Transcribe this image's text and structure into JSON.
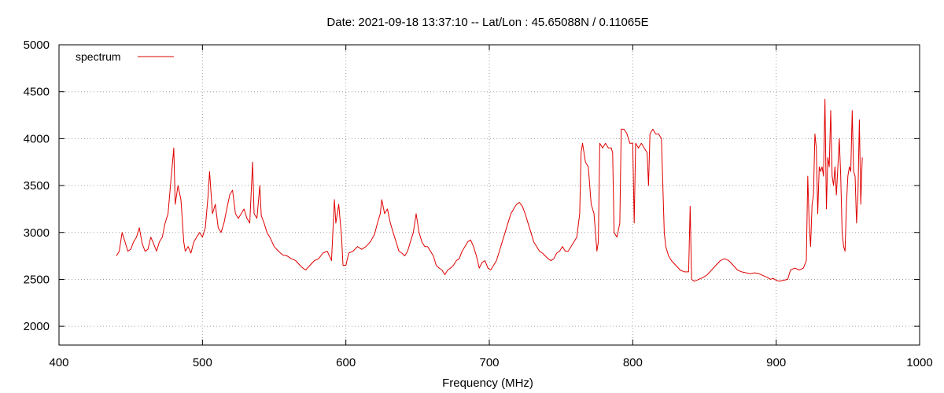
{
  "chart_data": {
    "type": "line",
    "title": "Date: 2021-09-18 13:37:10  --  Lat/Lon : 45.65088N / 0.11065E",
    "xlabel": "Frequency (MHz)",
    "ylabel": "",
    "xlim": [
      400,
      1000
    ],
    "ylim": [
      1800,
      5000
    ],
    "xticks": [
      400,
      500,
      600,
      700,
      800,
      900,
      1000
    ],
    "yticks": [
      2000,
      2500,
      3000,
      3500,
      4000,
      4500,
      5000
    ],
    "grid": true,
    "legend_position": "top-left",
    "series": [
      {
        "name": "spectrum",
        "color": "#e00000",
        "points": [
          [
            440,
            2750
          ],
          [
            442,
            2800
          ],
          [
            444,
            3000
          ],
          [
            446,
            2900
          ],
          [
            448,
            2800
          ],
          [
            450,
            2820
          ],
          [
            452,
            2900
          ],
          [
            454,
            2950
          ],
          [
            456,
            3050
          ],
          [
            458,
            2880
          ],
          [
            460,
            2800
          ],
          [
            462,
            2820
          ],
          [
            464,
            2950
          ],
          [
            466,
            2880
          ],
          [
            468,
            2800
          ],
          [
            470,
            2900
          ],
          [
            472,
            2950
          ],
          [
            474,
            3100
          ],
          [
            476,
            3200
          ],
          [
            478,
            3550
          ],
          [
            480,
            3900
          ],
          [
            481,
            3300
          ],
          [
            483,
            3500
          ],
          [
            485,
            3350
          ],
          [
            487,
            2900
          ],
          [
            488,
            2800
          ],
          [
            490,
            2850
          ],
          [
            492,
            2780
          ],
          [
            494,
            2900
          ],
          [
            496,
            2950
          ],
          [
            498,
            3000
          ],
          [
            500,
            2950
          ],
          [
            502,
            3050
          ],
          [
            504,
            3400
          ],
          [
            505,
            3650
          ],
          [
            507,
            3200
          ],
          [
            509,
            3300
          ],
          [
            511,
            3050
          ],
          [
            513,
            3000
          ],
          [
            515,
            3100
          ],
          [
            517,
            3250
          ],
          [
            519,
            3400
          ],
          [
            521,
            3450
          ],
          [
            523,
            3200
          ],
          [
            525,
            3150
          ],
          [
            527,
            3200
          ],
          [
            529,
            3250
          ],
          [
            531,
            3150
          ],
          [
            533,
            3100
          ],
          [
            535,
            3750
          ],
          [
            536,
            3200
          ],
          [
            538,
            3150
          ],
          [
            540,
            3500
          ],
          [
            541,
            3180
          ],
          [
            543,
            3100
          ],
          [
            545,
            3000
          ],
          [
            547,
            2950
          ],
          [
            550,
            2850
          ],
          [
            553,
            2800
          ],
          [
            556,
            2760
          ],
          [
            559,
            2750
          ],
          [
            562,
            2720
          ],
          [
            565,
            2700
          ],
          [
            568,
            2650
          ],
          [
            570,
            2620
          ],
          [
            572,
            2600
          ],
          [
            575,
            2650
          ],
          [
            578,
            2700
          ],
          [
            581,
            2720
          ],
          [
            584,
            2780
          ],
          [
            587,
            2800
          ],
          [
            590,
            2700
          ],
          [
            592,
            3350
          ],
          [
            593,
            3100
          ],
          [
            595,
            3300
          ],
          [
            597,
            2950
          ],
          [
            598,
            2650
          ],
          [
            600,
            2650
          ],
          [
            602,
            2780
          ],
          [
            605,
            2800
          ],
          [
            608,
            2850
          ],
          [
            611,
            2820
          ],
          [
            614,
            2850
          ],
          [
            617,
            2900
          ],
          [
            620,
            2980
          ],
          [
            622,
            3100
          ],
          [
            624,
            3200
          ],
          [
            625,
            3350
          ],
          [
            627,
            3200
          ],
          [
            629,
            3250
          ],
          [
            631,
            3100
          ],
          [
            633,
            3000
          ],
          [
            635,
            2900
          ],
          [
            637,
            2800
          ],
          [
            639,
            2780
          ],
          [
            641,
            2750
          ],
          [
            643,
            2800
          ],
          [
            645,
            2900
          ],
          [
            647,
            3000
          ],
          [
            649,
            3200
          ],
          [
            651,
            3000
          ],
          [
            653,
            2900
          ],
          [
            655,
            2850
          ],
          [
            657,
            2850
          ],
          [
            659,
            2800
          ],
          [
            661,
            2750
          ],
          [
            663,
            2650
          ],
          [
            665,
            2620
          ],
          [
            667,
            2600
          ],
          [
            669,
            2550
          ],
          [
            671,
            2600
          ],
          [
            673,
            2620
          ],
          [
            675,
            2650
          ],
          [
            677,
            2700
          ],
          [
            679,
            2720
          ],
          [
            681,
            2800
          ],
          [
            683,
            2850
          ],
          [
            685,
            2900
          ],
          [
            687,
            2920
          ],
          [
            689,
            2850
          ],
          [
            691,
            2750
          ],
          [
            693,
            2620
          ],
          [
            695,
            2680
          ],
          [
            697,
            2700
          ],
          [
            699,
            2620
          ],
          [
            701,
            2600
          ],
          [
            703,
            2650
          ],
          [
            705,
            2700
          ],
          [
            707,
            2800
          ],
          [
            709,
            2900
          ],
          [
            711,
            3000
          ],
          [
            713,
            3100
          ],
          [
            715,
            3200
          ],
          [
            717,
            3250
          ],
          [
            719,
            3300
          ],
          [
            721,
            3320
          ],
          [
            723,
            3280
          ],
          [
            725,
            3200
          ],
          [
            727,
            3100
          ],
          [
            729,
            3000
          ],
          [
            731,
            2900
          ],
          [
            733,
            2850
          ],
          [
            735,
            2800
          ],
          [
            737,
            2780
          ],
          [
            739,
            2750
          ],
          [
            741,
            2720
          ],
          [
            743,
            2700
          ],
          [
            745,
            2720
          ],
          [
            747,
            2780
          ],
          [
            749,
            2800
          ],
          [
            751,
            2850
          ],
          [
            753,
            2800
          ],
          [
            755,
            2800
          ],
          [
            757,
            2850
          ],
          [
            759,
            2900
          ],
          [
            761,
            2950
          ],
          [
            763,
            3200
          ],
          [
            764,
            3850
          ],
          [
            765,
            3950
          ],
          [
            767,
            3750
          ],
          [
            769,
            3700
          ],
          [
            771,
            3300
          ],
          [
            773,
            3200
          ],
          [
            775,
            2800
          ],
          [
            776,
            2900
          ],
          [
            777,
            3950
          ],
          [
            779,
            3900
          ],
          [
            781,
            3950
          ],
          [
            783,
            3900
          ],
          [
            785,
            3900
          ],
          [
            786,
            3850
          ],
          [
            787,
            3000
          ],
          [
            789,
            2950
          ],
          [
            791,
            3100
          ],
          [
            792,
            4100
          ],
          [
            794,
            4100
          ],
          [
            796,
            4050
          ],
          [
            798,
            3950
          ],
          [
            800,
            3950
          ],
          [
            801,
            3100
          ],
          [
            802,
            3950
          ],
          [
            804,
            3900
          ],
          [
            806,
            3950
          ],
          [
            808,
            3900
          ],
          [
            810,
            3850
          ],
          [
            811,
            3500
          ],
          [
            812,
            4050
          ],
          [
            814,
            4100
          ],
          [
            816,
            4050
          ],
          [
            818,
            4050
          ],
          [
            820,
            4000
          ],
          [
            821,
            3500
          ],
          [
            822,
            3000
          ],
          [
            823,
            2850
          ],
          [
            825,
            2750
          ],
          [
            827,
            2700
          ],
          [
            830,
            2650
          ],
          [
            833,
            2600
          ],
          [
            836,
            2580
          ],
          [
            839,
            2580
          ],
          [
            840,
            3280
          ],
          [
            841,
            2500
          ],
          [
            843,
            2480
          ],
          [
            846,
            2500
          ],
          [
            849,
            2520
          ],
          [
            852,
            2550
          ],
          [
            855,
            2600
          ],
          [
            858,
            2650
          ],
          [
            861,
            2700
          ],
          [
            864,
            2720
          ],
          [
            867,
            2700
          ],
          [
            870,
            2650
          ],
          [
            873,
            2600
          ],
          [
            876,
            2580
          ],
          [
            879,
            2570
          ],
          [
            882,
            2560
          ],
          [
            885,
            2570
          ],
          [
            888,
            2560
          ],
          [
            891,
            2540
          ],
          [
            894,
            2520
          ],
          [
            896,
            2500
          ],
          [
            898,
            2510
          ],
          [
            900,
            2490
          ],
          [
            902,
            2480
          ],
          [
            905,
            2490
          ],
          [
            908,
            2500
          ],
          [
            910,
            2600
          ],
          [
            913,
            2620
          ],
          [
            916,
            2600
          ],
          [
            919,
            2620
          ],
          [
            921,
            2700
          ],
          [
            922,
            3600
          ],
          [
            923,
            3100
          ],
          [
            924,
            2850
          ],
          [
            925,
            3300
          ],
          [
            926,
            3400
          ],
          [
            927,
            4050
          ],
          [
            928,
            3900
          ],
          [
            929,
            3200
          ],
          [
            930,
            3700
          ],
          [
            931,
            3650
          ],
          [
            932,
            3700
          ],
          [
            933,
            3600
          ],
          [
            934,
            4420
          ],
          [
            935,
            3250
          ],
          [
            936,
            3800
          ],
          [
            937,
            3700
          ],
          [
            938,
            4300
          ],
          [
            939,
            3600
          ],
          [
            940,
            3500
          ],
          [
            941,
            3700
          ],
          [
            942,
            3400
          ],
          [
            943,
            3700
          ],
          [
            944,
            4000
          ],
          [
            945,
            3600
          ],
          [
            946,
            3000
          ],
          [
            947,
            2850
          ],
          [
            948,
            2800
          ],
          [
            949,
            3300
          ],
          [
            950,
            3600
          ],
          [
            951,
            3700
          ],
          [
            952,
            3650
          ],
          [
            953,
            4300
          ],
          [
            954,
            3650
          ],
          [
            955,
            3600
          ],
          [
            956,
            3100
          ],
          [
            957,
            3400
          ],
          [
            958,
            4200
          ],
          [
            959,
            3300
          ],
          [
            960,
            3800
          ]
        ]
      }
    ]
  }
}
